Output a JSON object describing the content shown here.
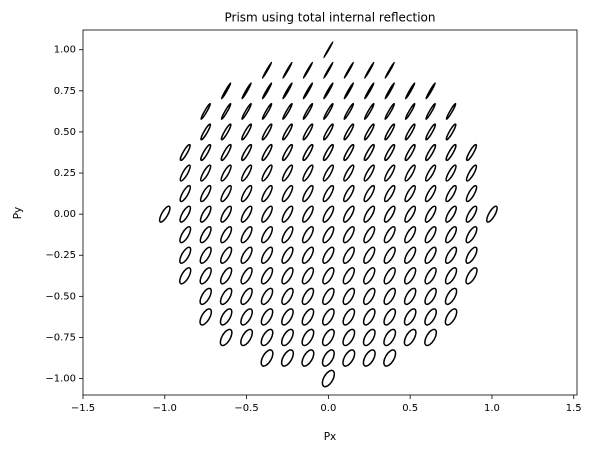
{
  "chart_data": {
    "type": "ellipse-field",
    "title": "Prism using total internal reflection",
    "x_label": "Px",
    "y_label": "Py",
    "xlim": [
      -1.5,
      1.52
    ],
    "ylim": [
      -1.1,
      1.12
    ],
    "xticks": [
      {
        "value": -1.5,
        "label": "−1.5"
      },
      {
        "value": -1.0,
        "label": "−1.0"
      },
      {
        "value": -0.5,
        "label": "−0.5"
      },
      {
        "value": 0.0,
        "label": "0.0"
      },
      {
        "value": 0.5,
        "label": "0.5"
      },
      {
        "value": 1.0,
        "label": "1.0"
      },
      {
        "value": 1.5,
        "label": "1.5"
      }
    ],
    "yticks": [
      {
        "value": -1.0,
        "label": "−1.00"
      },
      {
        "value": -0.75,
        "label": "−0.75"
      },
      {
        "value": -0.5,
        "label": "−0.50"
      },
      {
        "value": -0.25,
        "label": "−0.25"
      },
      {
        "value": 0.0,
        "label": "0.00"
      },
      {
        "value": 0.25,
        "label": "0.25"
      },
      {
        "value": 0.5,
        "label": "0.50"
      },
      {
        "value": 0.75,
        "label": "0.75"
      },
      {
        "value": 1.0,
        "label": "1.00"
      }
    ],
    "color": "#000000",
    "ellipse_size": 0.055,
    "ellipse_angle": 60,
    "rows": [
      {
        "y": 1.0,
        "minor": 0.02,
        "x": [
          0
        ]
      },
      {
        "y": 0.875,
        "minor": 0.05,
        "x": [
          -0.375,
          -0.25,
          -0.125,
          0,
          0.125,
          0.25,
          0.375
        ]
      },
      {
        "y": 0.75,
        "minor": 0.08,
        "x": [
          -0.625,
          -0.5,
          -0.375,
          -0.25,
          -0.125,
          0,
          0.125,
          0.25,
          0.375,
          0.5,
          0.625
        ]
      },
      {
        "y": 0.625,
        "minor": 0.12,
        "x": [
          -0.75,
          -0.625,
          -0.5,
          -0.375,
          -0.25,
          -0.125,
          0,
          0.125,
          0.25,
          0.375,
          0.5,
          0.625,
          0.75
        ]
      },
      {
        "y": 0.5,
        "minor": 0.18,
        "x": [
          -0.75,
          -0.625,
          -0.5,
          -0.375,
          -0.25,
          -0.125,
          0,
          0.125,
          0.25,
          0.375,
          0.5,
          0.625,
          0.75
        ]
      },
      {
        "y": 0.375,
        "minor": 0.22,
        "x": [
          -0.875,
          -0.75,
          -0.625,
          -0.5,
          -0.375,
          -0.25,
          -0.125,
          0,
          0.125,
          0.25,
          0.375,
          0.5,
          0.625,
          0.75,
          0.875
        ]
      },
      {
        "y": 0.25,
        "minor": 0.26,
        "x": [
          -0.875,
          -0.75,
          -0.625,
          -0.5,
          -0.375,
          -0.25,
          -0.125,
          0,
          0.125,
          0.25,
          0.375,
          0.5,
          0.625,
          0.75,
          0.875
        ]
      },
      {
        "y": 0.125,
        "minor": 0.3,
        "x": [
          -0.875,
          -0.75,
          -0.625,
          -0.5,
          -0.375,
          -0.25,
          -0.125,
          0,
          0.125,
          0.25,
          0.375,
          0.5,
          0.625,
          0.75,
          0.875
        ]
      },
      {
        "y": 0.0,
        "minor": 0.33,
        "x": [
          -1,
          -0.875,
          -0.75,
          -0.625,
          -0.5,
          -0.375,
          -0.25,
          -0.125,
          0,
          0.125,
          0.25,
          0.375,
          0.5,
          0.625,
          0.75,
          0.875,
          1
        ]
      },
      {
        "y": -0.125,
        "minor": 0.36,
        "x": [
          -0.875,
          -0.75,
          -0.625,
          -0.5,
          -0.375,
          -0.25,
          -0.125,
          0,
          0.125,
          0.25,
          0.375,
          0.5,
          0.625,
          0.75,
          0.875
        ]
      },
      {
        "y": -0.25,
        "minor": 0.38,
        "x": [
          -0.875,
          -0.75,
          -0.625,
          -0.5,
          -0.375,
          -0.25,
          -0.125,
          0,
          0.125,
          0.25,
          0.375,
          0.5,
          0.625,
          0.75,
          0.875
        ]
      },
      {
        "y": -0.375,
        "minor": 0.4,
        "x": [
          -0.875,
          -0.75,
          -0.625,
          -0.5,
          -0.375,
          -0.25,
          -0.125,
          0,
          0.125,
          0.25,
          0.375,
          0.5,
          0.625,
          0.75,
          0.875
        ]
      },
      {
        "y": -0.5,
        "minor": 0.42,
        "x": [
          -0.75,
          -0.625,
          -0.5,
          -0.375,
          -0.25,
          -0.125,
          0,
          0.125,
          0.25,
          0.375,
          0.5,
          0.625,
          0.75
        ]
      },
      {
        "y": -0.625,
        "minor": 0.44,
        "x": [
          -0.75,
          -0.625,
          -0.5,
          -0.375,
          -0.25,
          -0.125,
          0,
          0.125,
          0.25,
          0.375,
          0.5,
          0.625,
          0.75
        ]
      },
      {
        "y": -0.75,
        "minor": 0.46,
        "x": [
          -0.625,
          -0.5,
          -0.375,
          -0.25,
          -0.125,
          0,
          0.125,
          0.25,
          0.375,
          0.5,
          0.625
        ]
      },
      {
        "y": -0.875,
        "minor": 0.48,
        "x": [
          -0.375,
          -0.25,
          -0.125,
          0,
          0.125,
          0.25,
          0.375
        ]
      },
      {
        "y": -1.0,
        "minor": 0.5,
        "x": [
          0
        ]
      }
    ]
  }
}
